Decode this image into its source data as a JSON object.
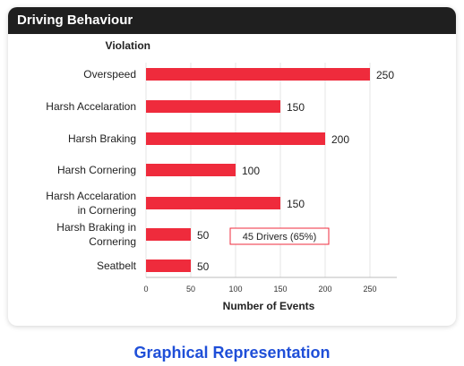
{
  "card": {
    "title": "Driving Behaviour"
  },
  "footer": {
    "caption": "Graphical Representation"
  },
  "colors": {
    "bar": "#ef2b3c",
    "header_bg": "#1f1f1f",
    "caption": "#1f4fd8",
    "annotation_border": "#ef2b3c"
  },
  "annotation": {
    "text": "45 Drivers (65%)"
  },
  "chart_data": {
    "type": "bar",
    "orientation": "horizontal",
    "title": "Driving Behaviour",
    "ylabel": "Violation",
    "xlabel": "Number of Events",
    "categories": [
      [
        "Overspeed"
      ],
      [
        "Harsh Accelaration"
      ],
      [
        "Harsh Braking"
      ],
      [
        "Harsh Cornering"
      ],
      [
        "Harsh Accelaration",
        "in Cornering"
      ],
      [
        "Harsh Braking in",
        "Cornering"
      ],
      [
        "Seatbelt"
      ]
    ],
    "values": [
      250,
      150,
      200,
      100,
      150,
      50,
      50
    ],
    "xlim": [
      0,
      280
    ],
    "xticks": [
      0,
      50,
      100,
      150,
      200,
      250
    ],
    "grid": true
  }
}
